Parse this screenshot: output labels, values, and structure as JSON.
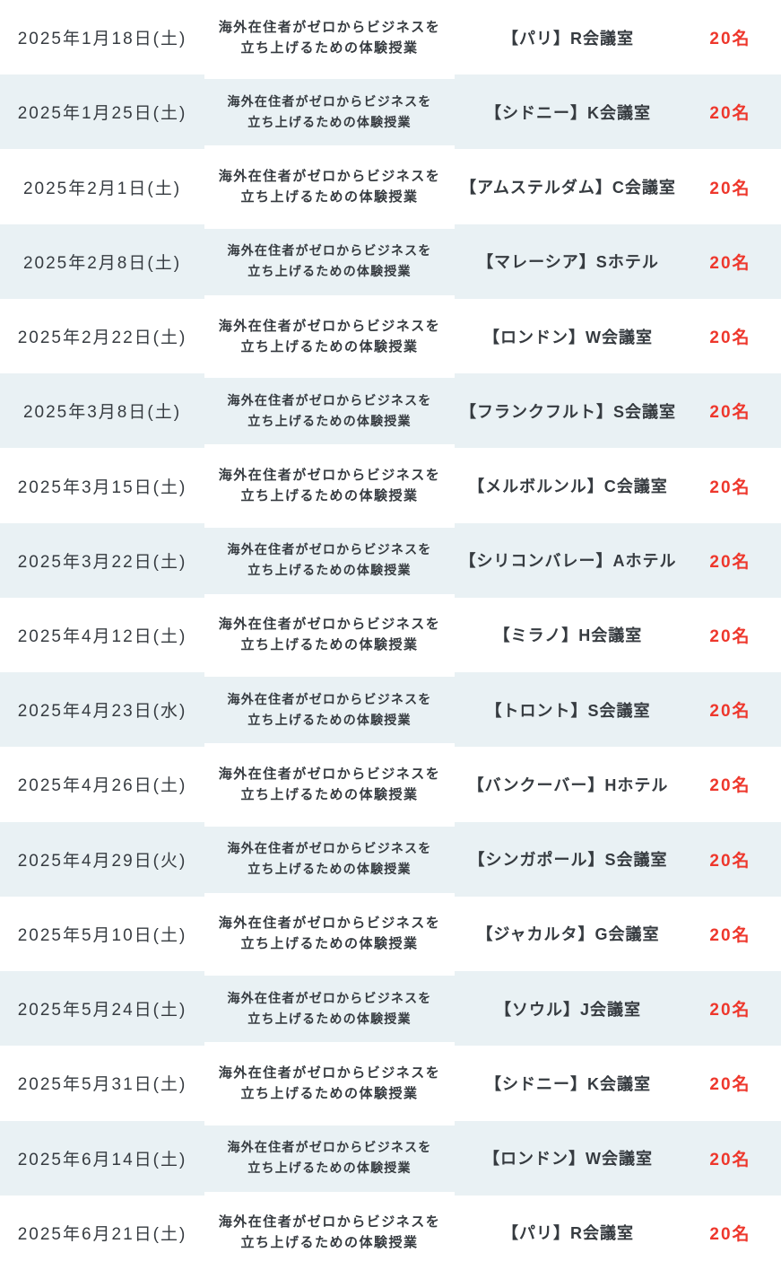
{
  "colors": {
    "row_alt_background": "#e9f1f4",
    "row_background": "#ffffff",
    "text": "#363b40",
    "capacity_text": "#ee372c"
  },
  "table": {
    "columns": [
      "date",
      "description",
      "venue",
      "capacity"
    ],
    "rows": [
      {
        "date": "2025年1月18日(土)",
        "description": "海外在住者がゼロからビジネスを\n立ち上げるための体験授業",
        "venue": "【パリ】R会議室",
        "capacity": "20名"
      },
      {
        "date": "2025年1月25日(土)",
        "description": "海外在住者がゼロからビジネスを\n立ち上げるための体験授業",
        "venue": "【シドニー】K会議室",
        "capacity": "20名"
      },
      {
        "date": "2025年2月1日(土)",
        "description": "海外在住者がゼロからビジネスを\n立ち上げるための体験授業",
        "venue": "【アムステルダム】C会議室",
        "capacity": "20名"
      },
      {
        "date": "2025年2月8日(土)",
        "description": "海外在住者がゼロからビジネスを\n立ち上げるための体験授業",
        "venue": "【マレーシア】Sホテル",
        "capacity": "20名"
      },
      {
        "date": "2025年2月22日(土)",
        "description": "海外在住者がゼロからビジネスを\n立ち上げるための体験授業",
        "venue": "【ロンドン】W会議室",
        "capacity": "20名"
      },
      {
        "date": "2025年3月8日(土)",
        "description": "海外在住者がゼロからビジネスを\n立ち上げるための体験授業",
        "venue": "【フランクフルト】S会議室",
        "capacity": "20名"
      },
      {
        "date": "2025年3月15日(土)",
        "description": "海外在住者がゼロからビジネスを\n立ち上げるための体験授業",
        "venue": "【メルボルンル】C会議室",
        "capacity": "20名"
      },
      {
        "date": "2025年3月22日(土)",
        "description": "海外在住者がゼロからビジネスを\n立ち上げるための体験授業",
        "venue": "【シリコンバレー】Aホテル",
        "capacity": "20名"
      },
      {
        "date": "2025年4月12日(土)",
        "description": "海外在住者がゼロからビジネスを\n立ち上げるための体験授業",
        "venue": "【ミラノ】H会議室",
        "capacity": "20名"
      },
      {
        "date": "2025年4月23日(水)",
        "description": "海外在住者がゼロからビジネスを\n立ち上げるための体験授業",
        "venue": "【トロント】S会議室",
        "capacity": "20名"
      },
      {
        "date": "2025年4月26日(土)",
        "description": "海外在住者がゼロからビジネスを\n立ち上げるための体験授業",
        "venue": "【バンクーバー】Hホテル",
        "capacity": "20名"
      },
      {
        "date": "2025年4月29日(火)",
        "description": "海外在住者がゼロからビジネスを\n立ち上げるための体験授業",
        "venue": "【シンガポール】S会議室",
        "capacity": "20名"
      },
      {
        "date": "2025年5月10日(土)",
        "description": "海外在住者がゼロからビジネスを\n立ち上げるための体験授業",
        "venue": "【ジャカルタ】G会議室",
        "capacity": "20名"
      },
      {
        "date": "2025年5月24日(土)",
        "description": "海外在住者がゼロからビジネスを\n立ち上げるための体験授業",
        "venue": "【ソウル】J会議室",
        "capacity": "20名"
      },
      {
        "date": "2025年5月31日(土)",
        "description": "海外在住者がゼロからビジネスを\n立ち上げるための体験授業",
        "venue": "【シドニー】K会議室",
        "capacity": "20名"
      },
      {
        "date": "2025年6月14日(土)",
        "description": "海外在住者がゼロからビジネスを\n立ち上げるための体験授業",
        "venue": "【ロンドン】W会議室",
        "capacity": "20名"
      },
      {
        "date": "2025年6月21日(土)",
        "description": "海外在住者がゼロからビジネスを\n立ち上げるための体験授業",
        "venue": "【パリ】R会議室",
        "capacity": "20名"
      }
    ]
  }
}
